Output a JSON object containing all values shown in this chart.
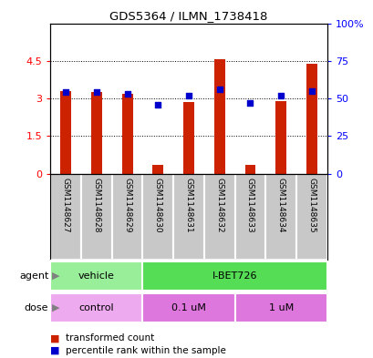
{
  "title": "GDS5364 / ILMN_1738418",
  "samples": [
    "GSM1148627",
    "GSM1148628",
    "GSM1148629",
    "GSM1148630",
    "GSM1148631",
    "GSM1148632",
    "GSM1148633",
    "GSM1148634",
    "GSM1148635"
  ],
  "red_values": [
    3.3,
    3.25,
    3.2,
    0.35,
    2.85,
    4.55,
    0.35,
    2.9,
    4.4
  ],
  "blue_pct": [
    54,
    54,
    53,
    46,
    52,
    56,
    47,
    52,
    55
  ],
  "ylim_left": [
    0,
    6
  ],
  "ylim_right": [
    0,
    100
  ],
  "yticks_left": [
    0,
    1.5,
    3.0,
    4.5
  ],
  "ytick_labels_left": [
    "0",
    "1.5",
    "3",
    "4.5"
  ],
  "yticks_right": [
    0,
    25,
    50,
    75,
    100
  ],
  "ytick_labels_right": [
    "0",
    "25",
    "50",
    "75",
    "100%"
  ],
  "agent_groups": [
    {
      "label": "vehicle",
      "start": 0,
      "end": 3,
      "color": "#99EE99"
    },
    {
      "label": "I-BET726",
      "start": 3,
      "end": 9,
      "color": "#55DD55"
    }
  ],
  "dose_groups": [
    {
      "label": "control",
      "start": 0,
      "end": 3,
      "color": "#EEAAEE"
    },
    {
      "label": "0.1 uM",
      "start": 3,
      "end": 6,
      "color": "#DD77DD"
    },
    {
      "label": "1 uM",
      "start": 6,
      "end": 9,
      "color": "#DD77DD"
    }
  ],
  "bar_color": "#CC2200",
  "dot_color": "#0000CC",
  "grid_color": "#000000",
  "bg_color": "#FFFFFF",
  "label_bg": "#C8C8C8",
  "legend_red": "transformed count",
  "legend_blue": "percentile rank within the sample"
}
